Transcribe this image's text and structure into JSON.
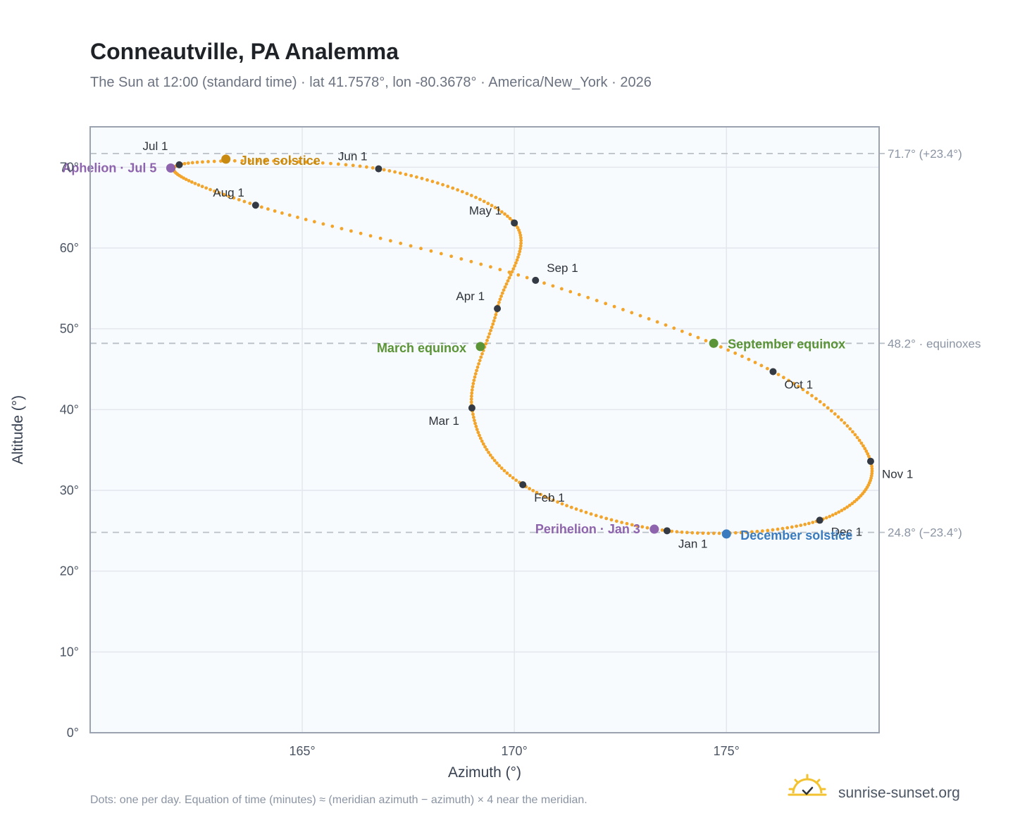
{
  "page": {
    "title": "Conneautville, PA Analemma",
    "subtitle": "The Sun at 12:00 (standard time) · lat 41.7578°, lon -80.3678° · America/New_York · 2026",
    "footnote": "Dots: one per day. Equation of time (minutes) ≈ (meridian azimuth − azimuth) × 4 near the meridian.",
    "brand": "sunrise-sunset.org",
    "brand_icon": "sun-check-icon"
  },
  "chart_data": {
    "type": "scatter",
    "title": "Conneautville, PA Analemma",
    "subtitle": "The Sun at 12:00 (standard time) · lat 41.7578°, lon -80.3678° · America/New_York · 2026",
    "xlabel": "Azimuth (°)",
    "ylabel": "Altitude (°)",
    "xlim": [
      160,
      178.6
    ],
    "ylim": [
      0,
      75
    ],
    "xticks": [
      165,
      170,
      175
    ],
    "xtick_labels": [
      "165°",
      "170°",
      "175°"
    ],
    "yticks": [
      0,
      10,
      20,
      30,
      40,
      50,
      60,
      70
    ],
    "ytick_labels": [
      "0°",
      "10°",
      "20°",
      "30°",
      "40°",
      "50°",
      "60°",
      "70°"
    ],
    "grid": true,
    "colors": {
      "path": "#f2a52a",
      "month_marker": "#333a44",
      "june_solstice": "#c98a12",
      "december_solstice": "#3a7bbf",
      "equinox": "#5a9436",
      "apsis": "#8d64ad",
      "reference_line": "#b9c0c8",
      "plot_background": "#f8fbfd",
      "frame": "#9aa3af"
    },
    "reference_lines": [
      {
        "y": 71.7,
        "label": "71.7° (+23.4°)"
      },
      {
        "y": 48.2,
        "label": "48.2° · equinoxes"
      },
      {
        "y": 24.8,
        "label": "24.8° (−23.4°)"
      }
    ],
    "month_points": [
      {
        "label": "Jan 1",
        "x": 173.6,
        "y": 25.0
      },
      {
        "label": "Feb 1",
        "x": 170.2,
        "y": 30.7
      },
      {
        "label": "Mar 1",
        "x": 169.0,
        "y": 40.2
      },
      {
        "label": "Apr 1",
        "x": 169.6,
        "y": 52.5
      },
      {
        "label": "May 1",
        "x": 170.0,
        "y": 63.1
      },
      {
        "label": "Jun 1",
        "x": 166.8,
        "y": 69.8
      },
      {
        "label": "Jul 1",
        "x": 162.1,
        "y": 70.3
      },
      {
        "label": "Aug 1",
        "x": 163.9,
        "y": 65.3
      },
      {
        "label": "Sep 1",
        "x": 170.5,
        "y": 56.0
      },
      {
        "label": "Oct 1",
        "x": 176.1,
        "y": 44.7
      },
      {
        "label": "Nov 1",
        "x": 178.4,
        "y": 33.6
      },
      {
        "label": "Dec 1",
        "x": 177.2,
        "y": 26.3
      }
    ],
    "events": [
      {
        "label": "June solstice",
        "x": 163.2,
        "y": 71.0,
        "kind": "june_solstice"
      },
      {
        "label": "Aphelion · Jul 5",
        "x": 161.9,
        "y": 69.9,
        "kind": "apsis"
      },
      {
        "label": "March equinox",
        "x": 169.2,
        "y": 47.8,
        "kind": "equinox"
      },
      {
        "label": "September equinox",
        "x": 174.7,
        "y": 48.2,
        "kind": "equinox"
      },
      {
        "label": "Perihelion · Jan 3",
        "x": 173.3,
        "y": 25.2,
        "kind": "apsis"
      },
      {
        "label": "December solstice",
        "x": 175.0,
        "y": 24.6,
        "kind": "december_solstice"
      }
    ]
  }
}
